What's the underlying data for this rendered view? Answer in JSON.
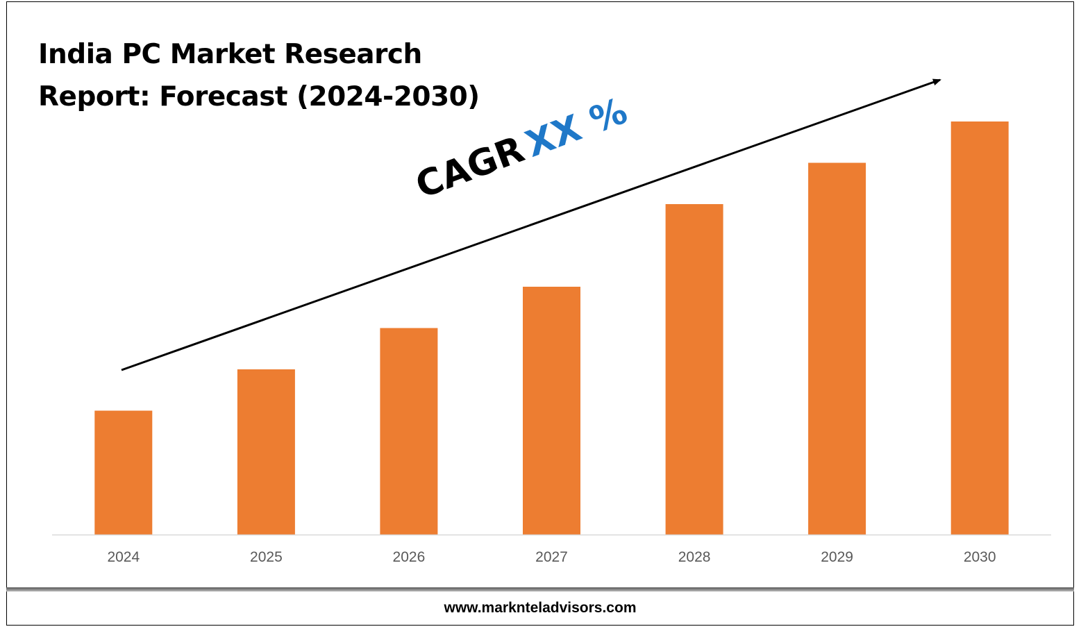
{
  "title": {
    "line1": "India PC Market Research",
    "line2": "Report: Forecast (2024-2030)"
  },
  "annotation": {
    "label": "CAGR",
    "value": "XX %",
    "value_color": "#1f78c8"
  },
  "footer": {
    "url": "www.marknteladvisors.com"
  },
  "chart_data": {
    "type": "bar",
    "categories": [
      "2024",
      "2025",
      "2026",
      "2027",
      "2028",
      "2029",
      "2030"
    ],
    "values": [
      30,
      40,
      50,
      60,
      80,
      90,
      100
    ],
    "ylim": [
      0,
      100
    ],
    "bar_color": "#ed7d31",
    "grid": false,
    "legend": "none",
    "trend_arrow": true
  }
}
